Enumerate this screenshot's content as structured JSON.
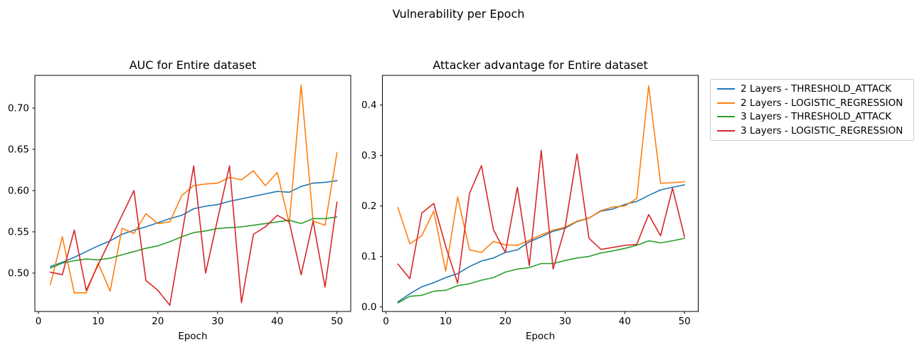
{
  "figure": {
    "suptitle": "Vulnerability per Epoch",
    "background": "#ffffff"
  },
  "colors": {
    "blue": "#1f77b4",
    "orange": "#ff7f0e",
    "green": "#2ca02c",
    "red": "#d62728",
    "axis": "#000000",
    "legend_border": "#cccccc"
  },
  "legend": {
    "position": "outside-right",
    "entries": [
      {
        "label": "2 Layers - THRESHOLD_ATTACK",
        "color": "#1f77b4"
      },
      {
        "label": "2 Layers - LOGISTIC_REGRESSION",
        "color": "#ff7f0e"
      },
      {
        "label": "3 Layers - THRESHOLD_ATTACK",
        "color": "#2ca02c"
      },
      {
        "label": "3 Layers - LOGISTIC_REGRESSION",
        "color": "#d62728"
      }
    ]
  },
  "chart_data": [
    {
      "type": "line",
      "title": "AUC for Entire dataset",
      "xlabel": "Epoch",
      "ylabel": "",
      "grid": false,
      "x": [
        2,
        4,
        6,
        8,
        10,
        12,
        14,
        16,
        18,
        20,
        22,
        24,
        26,
        28,
        30,
        32,
        34,
        36,
        38,
        40,
        42,
        44,
        46,
        48,
        50
      ],
      "xlim": [
        -0.6,
        52.3
      ],
      "ylim": [
        0.4534,
        0.7397
      ],
      "xticks": [
        0,
        10,
        20,
        30,
        40,
        50
      ],
      "xtick_labels": [
        "0",
        "10",
        "20",
        "30",
        "40",
        "50"
      ],
      "yticks": [
        0.5,
        0.55,
        0.6,
        0.65,
        0.7
      ],
      "ytick_labels": [
        "0.50",
        "0.55",
        "0.60",
        "0.65",
        "0.70"
      ],
      "series": [
        {
          "name": "2 Layers - THRESHOLD_ATTACK",
          "color": "#1f77b4",
          "values": [
            0.508,
            0.513,
            0.519,
            0.526,
            0.533,
            0.539,
            0.547,
            0.552,
            0.556,
            0.561,
            0.566,
            0.57,
            0.578,
            0.581,
            0.583,
            0.587,
            0.59,
            0.593,
            0.596,
            0.599,
            0.598,
            0.605,
            0.609,
            0.61,
            0.612
          ]
        },
        {
          "name": "2 Layers - LOGISTIC_REGRESSION",
          "color": "#ff7f0e",
          "values": [
            0.486,
            0.544,
            0.476,
            0.476,
            0.512,
            0.478,
            0.554,
            0.548,
            0.572,
            0.56,
            0.562,
            0.594,
            0.606,
            0.608,
            0.609,
            0.616,
            0.613,
            0.624,
            0.606,
            0.622,
            0.56,
            0.728,
            0.563,
            0.558,
            0.646
          ]
        },
        {
          "name": "3 Layers - THRESHOLD_ATTACK",
          "color": "#2ca02c",
          "values": [
            0.506,
            0.512,
            0.515,
            0.517,
            0.516,
            0.518,
            0.522,
            0.526,
            0.53,
            0.533,
            0.538,
            0.544,
            0.549,
            0.551,
            0.554,
            0.555,
            0.556,
            0.558,
            0.56,
            0.562,
            0.564,
            0.56,
            0.566,
            0.566,
            0.568
          ]
        },
        {
          "name": "3 Layers - LOGISTIC_REGRESSION",
          "color": "#d62728",
          "values": [
            0.501,
            0.498,
            0.552,
            0.479,
            0.51,
            0.54,
            0.57,
            0.6,
            0.491,
            0.479,
            0.461,
            0.546,
            0.63,
            0.5,
            0.565,
            0.63,
            0.464,
            0.547,
            0.556,
            0.57,
            0.562,
            0.498,
            0.563,
            0.483,
            0.586
          ]
        }
      ]
    },
    {
      "type": "line",
      "title": "Attacker advantage for Entire dataset",
      "xlabel": "Epoch",
      "ylabel": "",
      "grid": false,
      "x": [
        2,
        4,
        6,
        8,
        10,
        12,
        14,
        16,
        18,
        20,
        22,
        24,
        26,
        28,
        30,
        32,
        34,
        36,
        38,
        40,
        42,
        44,
        46,
        48,
        50
      ],
      "xlim": [
        -0.6,
        52.3
      ],
      "ylim": [
        -0.009,
        0.4588
      ],
      "xticks": [
        0,
        10,
        20,
        30,
        40,
        50
      ],
      "xtick_labels": [
        "0",
        "10",
        "20",
        "30",
        "40",
        "50"
      ],
      "yticks": [
        0.0,
        0.1,
        0.2,
        0.3,
        0.4
      ],
      "ytick_labels": [
        "0.0",
        "0.1",
        "0.2",
        "0.3",
        "0.4"
      ],
      "series": [
        {
          "name": "2 Layers - THRESHOLD_ATTACK",
          "color": "#1f77b4",
          "values": [
            0.01,
            0.026,
            0.04,
            0.048,
            0.058,
            0.066,
            0.08,
            0.091,
            0.097,
            0.108,
            0.113,
            0.129,
            0.139,
            0.15,
            0.156,
            0.169,
            0.176,
            0.19,
            0.194,
            0.203,
            0.209,
            0.221,
            0.232,
            0.237,
            0.242
          ]
        },
        {
          "name": "2 Layers - LOGISTIC_REGRESSION",
          "color": "#ff7f0e",
          "values": [
            0.197,
            0.125,
            0.141,
            0.19,
            0.071,
            0.218,
            0.113,
            0.108,
            0.13,
            0.123,
            0.122,
            0.132,
            0.143,
            0.152,
            0.158,
            0.17,
            0.176,
            0.191,
            0.198,
            0.2,
            0.215,
            0.438,
            0.245,
            0.246,
            0.248
          ]
        },
        {
          "name": "3 Layers - THRESHOLD_ATTACK",
          "color": "#2ca02c",
          "values": [
            0.008,
            0.021,
            0.023,
            0.031,
            0.033,
            0.042,
            0.046,
            0.053,
            0.058,
            0.069,
            0.075,
            0.078,
            0.086,
            0.086,
            0.092,
            0.097,
            0.1,
            0.107,
            0.111,
            0.116,
            0.122,
            0.131,
            0.127,
            0.131,
            0.136
          ]
        },
        {
          "name": "3 Layers - LOGISTIC_REGRESSION",
          "color": "#d62728",
          "values": [
            0.085,
            0.056,
            0.186,
            0.205,
            0.12,
            0.047,
            0.225,
            0.28,
            0.153,
            0.108,
            0.237,
            0.082,
            0.31,
            0.075,
            0.157,
            0.303,
            0.136,
            0.114,
            0.118,
            0.122,
            0.124,
            0.183,
            0.141,
            0.235,
            0.139
          ]
        }
      ]
    }
  ]
}
